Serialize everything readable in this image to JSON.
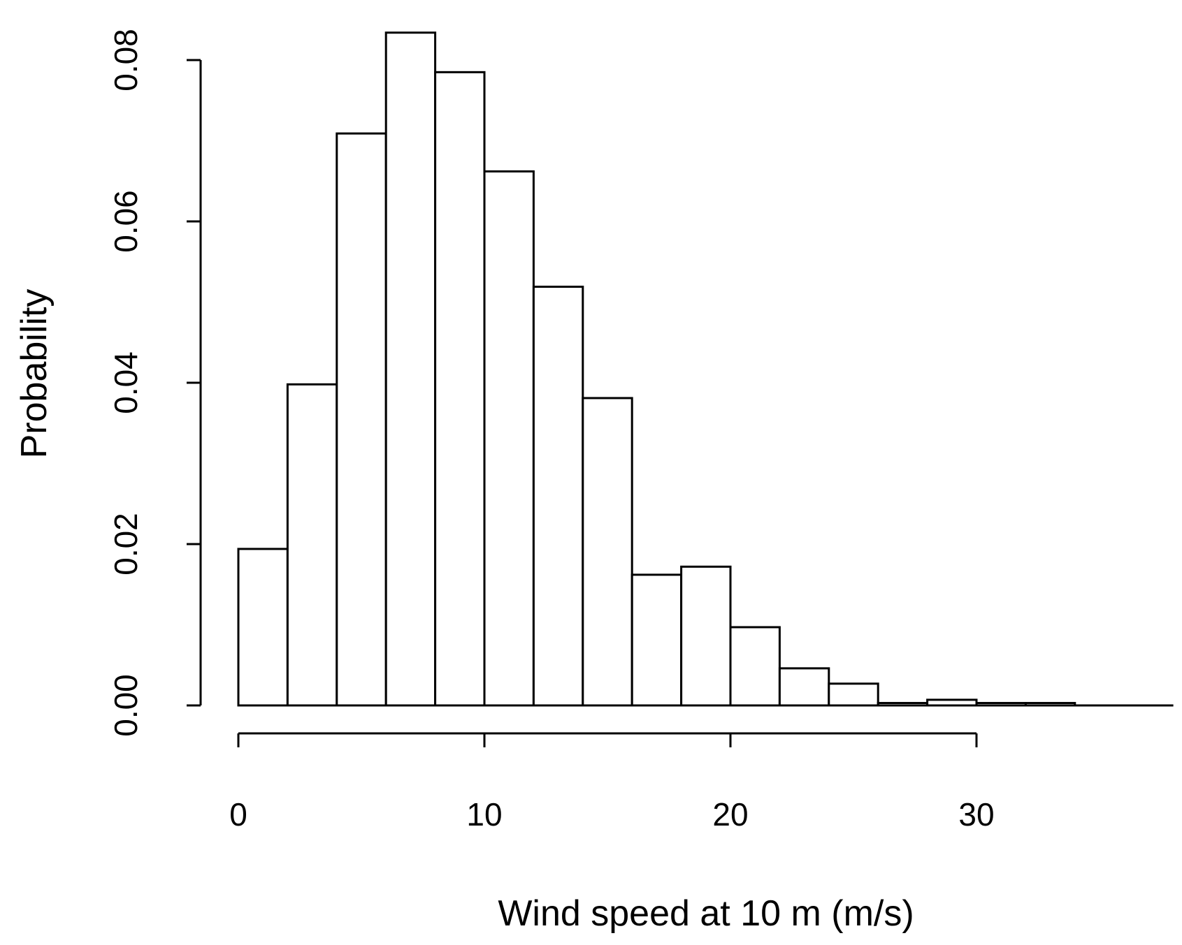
{
  "chart_data": {
    "type": "bar",
    "title": "",
    "xlabel": "Wind speed at 10 m (m/s)",
    "ylabel": "Probability",
    "bin_width": 2,
    "bin_starts": [
      0,
      2,
      4,
      6,
      8,
      10,
      12,
      14,
      16,
      18,
      20,
      22,
      24,
      26,
      28,
      30,
      32
    ],
    "values": [
      0.0194,
      0.0398,
      0.0709,
      0.0834,
      0.0785,
      0.0662,
      0.0519,
      0.0381,
      0.0162,
      0.0172,
      0.0097,
      0.0046,
      0.0027,
      0.0003,
      0.0007,
      0.0003,
      0.0003
    ],
    "xlim": [
      0,
      38
    ],
    "ylim": [
      0,
      0.08
    ],
    "xticks": [
      0,
      10,
      20,
      30
    ],
    "xtick_labels": [
      "0",
      "10",
      "20",
      "30"
    ],
    "yticks": [
      0,
      0.02,
      0.04,
      0.06,
      0.08
    ],
    "ytick_labels": [
      "0.00",
      "0.02",
      "0.04",
      "0.06",
      "0.08"
    ],
    "grid": false,
    "legend": "none"
  }
}
